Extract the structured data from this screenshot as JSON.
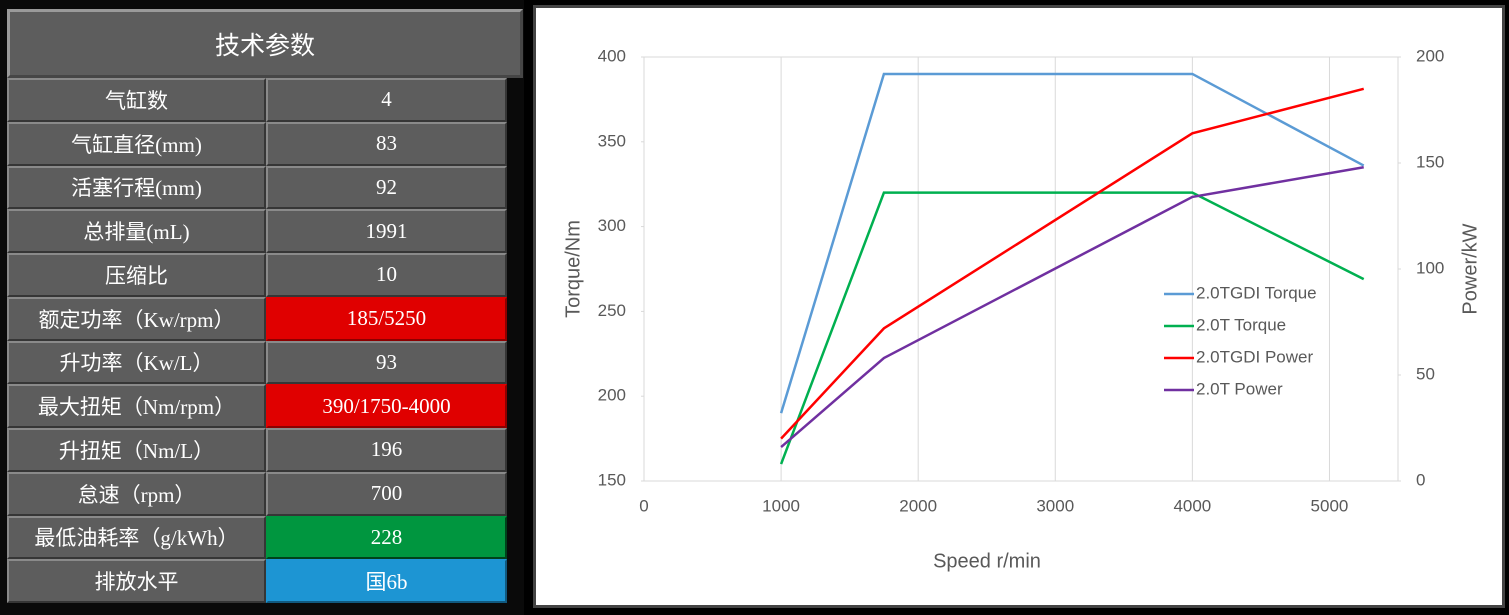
{
  "table": {
    "title": "技术参数",
    "rows": [
      {
        "label": "气缸数",
        "value": "4"
      },
      {
        "label": "气缸直径(mm)",
        "value": "83"
      },
      {
        "label": "活塞行程(mm)",
        "value": "92"
      },
      {
        "label": "总排量(mL)",
        "value": "1991"
      },
      {
        "label": "压缩比",
        "value": "10"
      },
      {
        "label": "额定功率（Kw/rpm）",
        "value": "185/5250",
        "color": "#e00000"
      },
      {
        "label": "升功率（Kw/L）",
        "value": "93"
      },
      {
        "label": "最大扭矩（Nm/rpm）",
        "value": "390/1750-4000",
        "color": "#e00000"
      },
      {
        "label": "升扭矩（Nm/L）",
        "value": "196"
      },
      {
        "label": "怠速（rpm）",
        "value": "700"
      },
      {
        "label": "最低油耗率（g/kWh）",
        "value": "228",
        "color": "#00963f"
      },
      {
        "label": "排放水平",
        "value": "国6b",
        "color": "#1d95d3"
      }
    ]
  },
  "chart_data": {
    "type": "line",
    "x_label": "Speed r/min",
    "y_label": "Torque/Nm",
    "y2_label": "Power/kW",
    "x": [
      1000,
      1750,
      4000,
      5250
    ],
    "series": [
      {
        "name": "2.0TGDI Torque",
        "color": "#5b9bd5",
        "values": [
          190,
          390,
          390,
          336
        ]
      },
      {
        "name": "2.0T Torque",
        "color": "#00b050",
        "values": [
          160,
          320,
          320,
          269
        ]
      },
      {
        "name": "2.0TGDI Power",
        "color": "#ff0000",
        "values": [
          20,
          72,
          164,
          185
        ],
        "axis": "y2"
      },
      {
        "name": "2.0T Power",
        "color": "#7030a0",
        "values": [
          16,
          58,
          134,
          148
        ],
        "axis": "y2"
      }
    ],
    "xlim": [
      0,
      5500
    ],
    "xticks": [
      0,
      1000,
      2000,
      3000,
      4000,
      5000
    ],
    "ylim": [
      150,
      400
    ],
    "yticks": [
      150,
      200,
      250,
      300,
      350,
      400
    ],
    "y2lim": [
      0,
      200
    ],
    "y2ticks": [
      0,
      50,
      100,
      150,
      200
    ],
    "grid": true,
    "legend": "right"
  }
}
